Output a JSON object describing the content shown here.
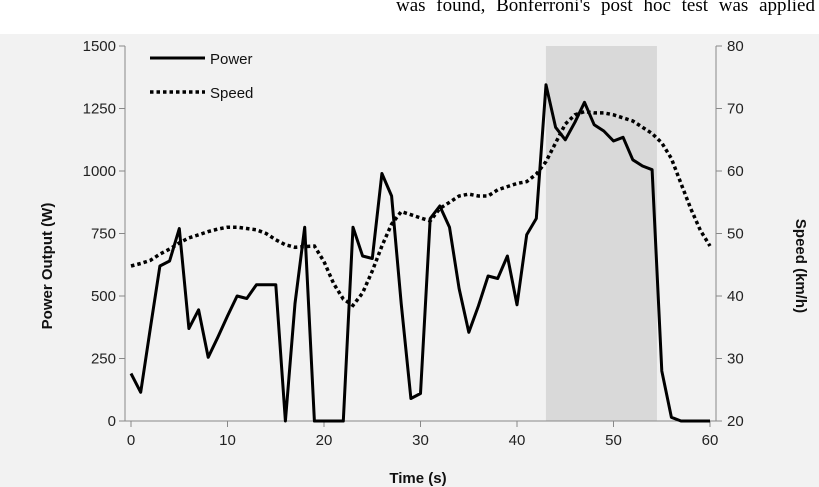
{
  "page_text": "was found, Bonferroni's post hoc test was applied",
  "colors": {
    "background": "#f2f2f2",
    "shaded_region": "#d9d9d9",
    "power_line": "#000000",
    "speed_line": "#000000"
  },
  "chart_data": {
    "type": "line",
    "title": "",
    "xlabel": "Time (s)",
    "ylabel": "Power Output (W)",
    "y2label": "Speed (km/h)",
    "xlim": [
      0,
      60
    ],
    "ylim": [
      0,
      1500
    ],
    "y2lim": [
      20,
      80
    ],
    "xticks": [
      0,
      10,
      20,
      30,
      40,
      50,
      60
    ],
    "yticks": [
      0,
      250,
      500,
      750,
      1000,
      1250,
      1500
    ],
    "y2ticks": [
      20,
      30,
      40,
      50,
      60,
      70,
      80
    ],
    "grid": false,
    "legend_position": "top-left",
    "shaded_region": {
      "x_start": 43,
      "x_end": 54.5
    },
    "series": [
      {
        "name": "Power",
        "axis": "left",
        "style": "solid",
        "x": [
          0,
          1,
          2,
          3,
          4,
          5,
          6,
          7,
          8,
          9,
          10,
          11,
          12,
          13,
          14,
          15,
          16,
          17,
          18,
          19,
          20,
          21,
          22,
          23,
          24,
          25,
          26,
          27,
          28,
          29,
          30,
          31,
          32,
          33,
          34,
          35,
          36,
          37,
          38,
          39,
          40,
          41,
          42,
          43,
          44,
          45,
          46,
          47,
          48,
          49,
          50,
          51,
          52,
          53,
          54,
          55,
          56,
          57,
          58,
          59,
          60
        ],
        "values": [
          190,
          115,
          370,
          620,
          640,
          770,
          370,
          445,
          255,
          335,
          420,
          500,
          490,
          545,
          545,
          545,
          0,
          470,
          775,
          0,
          0,
          0,
          0,
          775,
          660,
          650,
          990,
          900,
          470,
          90,
          110,
          810,
          860,
          775,
          530,
          355,
          460,
          580,
          570,
          660,
          465,
          745,
          810,
          1345,
          1175,
          1125,
          1195,
          1275,
          1185,
          1160,
          1120,
          1135,
          1045,
          1020,
          1005,
          200,
          15,
          0,
          0,
          0,
          0
        ]
      },
      {
        "name": "Speed",
        "axis": "right",
        "style": "dotted",
        "x": [
          0,
          1,
          2,
          3,
          4,
          5,
          6,
          7,
          8,
          9,
          10,
          11,
          12,
          13,
          14,
          15,
          16,
          17,
          18,
          19,
          20,
          21,
          22,
          23,
          24,
          25,
          26,
          27,
          28,
          29,
          30,
          31,
          32,
          33,
          34,
          35,
          36,
          37,
          38,
          39,
          40,
          41,
          42,
          43,
          44,
          45,
          46,
          47,
          48,
          49,
          50,
          51,
          52,
          53,
          54,
          55,
          56,
          57,
          58,
          59,
          60
        ],
        "values": [
          44.8,
          45.2,
          45.7,
          46.7,
          47.5,
          48.5,
          49.3,
          49.8,
          50.3,
          50.7,
          51.0,
          51.0,
          50.8,
          50.6,
          50.0,
          49.0,
          48.2,
          47.8,
          47.9,
          48.0,
          45.5,
          42.0,
          39.5,
          38.5,
          40.5,
          44.0,
          48.0,
          51.5,
          53.5,
          53.0,
          52.5,
          52.0,
          54.0,
          55.0,
          56.0,
          56.3,
          56.0,
          56.0,
          57.0,
          57.5,
          58.0,
          58.3,
          59.5,
          61.5,
          64.5,
          67.5,
          69.0,
          69.5,
          69.3,
          69.3,
          69.0,
          68.5,
          68.0,
          67.0,
          66.0,
          64.5,
          62.0,
          58.0,
          54.0,
          50.5,
          48.0
        ]
      }
    ]
  }
}
